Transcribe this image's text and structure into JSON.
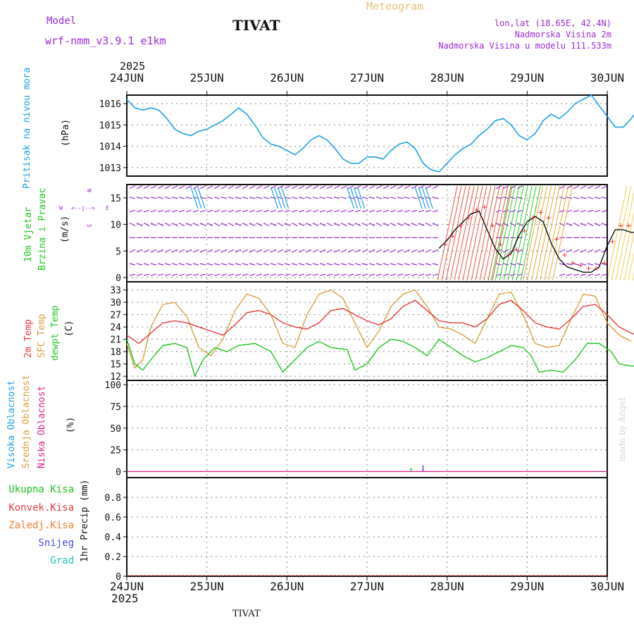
{
  "header": {
    "model_label": "Model",
    "model_name": "wrf-nmm_v3.9.1 e1km",
    "station": "TIVAT",
    "meteogram_label": "Meteogram",
    "coords": "lon,lat (18.65E, 42.4N)",
    "altitude": "Nadmorska Visina 2m",
    "model_altitude": "Nadmorska Visina u modelu 111.533m",
    "year_top": "2025",
    "year_bottom": "2025",
    "footer_station": "TIVAT",
    "credit": "made by Angel"
  },
  "colors": {
    "pressure": "#1ea0e6",
    "temp2m": "#e83a3a",
    "sfc": "#d8a040",
    "dew": "#22c422",
    "wind_speed": "#000000",
    "purple": "#9a2bd6",
    "grid": "#888888"
  },
  "chart_data": [
    {
      "type": "line",
      "name": "pressure",
      "labels": [
        "Pritisak na nivou mora",
        "(hPa)"
      ],
      "x": [
        "24JUN",
        "25JUN",
        "26JUN",
        "27JUN",
        "28JUN",
        "29JUN",
        "30JUN"
      ],
      "ylim": [
        1012.6,
        1016.4
      ],
      "yticks": [
        1013,
        1014,
        1015,
        1016
      ],
      "series": [
        {
          "values": [
            [
              0,
              1016.2
            ],
            [
              0.1,
              1015.8
            ],
            [
              0.2,
              1015.7
            ],
            [
              0.3,
              1015.8
            ],
            [
              0.4,
              1015.7
            ],
            [
              0.5,
              1015.3
            ],
            [
              0.6,
              1014.8
            ],
            [
              0.7,
              1014.6
            ],
            [
              0.8,
              1014.5
            ],
            [
              0.9,
              1014.7
            ],
            [
              1.0,
              1014.8
            ],
            [
              1.1,
              1015.0
            ],
            [
              1.2,
              1015.2
            ],
            [
              1.3,
              1015.5
            ],
            [
              1.4,
              1015.8
            ],
            [
              1.5,
              1015.5
            ],
            [
              1.6,
              1015.0
            ],
            [
              1.7,
              1014.4
            ],
            [
              1.8,
              1014.1
            ],
            [
              1.9,
              1014.0
            ],
            [
              2.0,
              1013.8
            ],
            [
              2.1,
              1013.6
            ],
            [
              2.2,
              1013.9
            ],
            [
              2.3,
              1014.3
            ],
            [
              2.4,
              1014.5
            ],
            [
              2.5,
              1014.3
            ],
            [
              2.6,
              1013.9
            ],
            [
              2.7,
              1013.4
            ],
            [
              2.8,
              1013.2
            ],
            [
              2.9,
              1013.2
            ],
            [
              3.0,
              1013.5
            ],
            [
              3.1,
              1013.5
            ],
            [
              3.2,
              1013.4
            ],
            [
              3.3,
              1013.8
            ],
            [
              3.4,
              1014.1
            ],
            [
              3.5,
              1014.2
            ],
            [
              3.6,
              1013.9
            ],
            [
              3.7,
              1013.2
            ],
            [
              3.8,
              1012.9
            ],
            [
              3.9,
              1012.8
            ],
            [
              4.0,
              1013.2
            ],
            [
              4.1,
              1013.6
            ],
            [
              4.2,
              1013.9
            ],
            [
              4.3,
              1014.1
            ],
            [
              4.4,
              1014.5
            ],
            [
              4.5,
              1014.8
            ],
            [
              4.6,
              1015.2
            ],
            [
              4.7,
              1015.3
            ],
            [
              4.8,
              1015.0
            ],
            [
              4.9,
              1014.5
            ],
            [
              5.0,
              1014.3
            ],
            [
              5.1,
              1014.6
            ],
            [
              5.2,
              1015.2
            ],
            [
              5.3,
              1015.5
            ],
            [
              5.4,
              1015.3
            ],
            [
              5.5,
              1015.6
            ],
            [
              5.6,
              1016.0
            ],
            [
              5.7,
              1016.2
            ],
            [
              5.8,
              1016.4
            ],
            [
              5.9,
              1015.9
            ],
            [
              6.0,
              1015.4
            ],
            [
              6.1,
              1014.9
            ],
            [
              6.2,
              1014.9
            ],
            [
              6.3,
              1015.3
            ],
            [
              6.4,
              1015.8
            ],
            [
              6.5,
              1016.0
            ],
            [
              6.6,
              1015.8
            ]
          ]
        }
      ]
    },
    {
      "type": "line",
      "name": "wind",
      "labels": [
        "10m Vjetar",
        "Brzina i Pravac",
        "(m/s)"
      ],
      "compass": {
        "n": "N",
        "s": "S",
        "w": "W",
        "e": "E"
      },
      "ylim": [
        -0.8,
        17.5
      ],
      "yticks": [
        0,
        5,
        10,
        15
      ],
      "bands": [
        0.5,
        2.5,
        5,
        7.5,
        10,
        12.5,
        15,
        17
      ],
      "speed_labels": "+",
      "series": [
        {
          "name": "wind speed",
          "values": [
            [
              3.9,
              5.5
            ],
            [
              4.0,
              7.0
            ],
            [
              4.1,
              9.0
            ],
            [
              4.2,
              10.5
            ],
            [
              4.3,
              12.0
            ],
            [
              4.4,
              12.5
            ],
            [
              4.5,
              9.0
            ],
            [
              4.6,
              5.5
            ],
            [
              4.7,
              3.5
            ],
            [
              4.8,
              4.5
            ],
            [
              4.9,
              8.0
            ],
            [
              5.0,
              10.5
            ],
            [
              5.1,
              11.5
            ],
            [
              5.2,
              10.5
            ],
            [
              5.3,
              6.5
            ],
            [
              5.4,
              3.5
            ],
            [
              5.5,
              2.0
            ],
            [
              5.6,
              1.5
            ],
            [
              5.7,
              1.0
            ],
            [
              5.8,
              1.0
            ],
            [
              5.9,
              2.0
            ],
            [
              6.0,
              6.0
            ],
            [
              6.1,
              9.0
            ],
            [
              6.2,
              9.0
            ],
            [
              6.3,
              8.5
            ],
            [
              6.4,
              8.5
            ],
            [
              6.5,
              8.0
            ],
            [
              6.6,
              8.5
            ]
          ]
        }
      ]
    },
    {
      "type": "line",
      "name": "temperature",
      "labels": [
        "2m Temp",
        "SFC Temp",
        "dewpt Temp",
        "(C)"
      ],
      "ylim": [
        11,
        35
      ],
      "yticks": [
        12,
        15,
        18,
        21,
        24,
        27,
        30,
        33
      ],
      "series": [
        {
          "name": "2m Temp",
          "values": [
            [
              0,
              22
            ],
            [
              0.15,
              20
            ],
            [
              0.3,
              22.5
            ],
            [
              0.45,
              25
            ],
            [
              0.6,
              25.5
            ],
            [
              0.75,
              25
            ],
            [
              0.9,
              24
            ],
            [
              1.05,
              23
            ],
            [
              1.2,
              22
            ],
            [
              1.35,
              24.5
            ],
            [
              1.5,
              27.5
            ],
            [
              1.65,
              28
            ],
            [
              1.8,
              27
            ],
            [
              1.95,
              25
            ],
            [
              2.1,
              24
            ],
            [
              2.25,
              23.5
            ],
            [
              2.4,
              25
            ],
            [
              2.55,
              28
            ],
            [
              2.7,
              28.5
            ],
            [
              2.85,
              27
            ],
            [
              3.0,
              25.5
            ],
            [
              3.15,
              24.5
            ],
            [
              3.3,
              26
            ],
            [
              3.45,
              29
            ],
            [
              3.6,
              30.5
            ],
            [
              3.75,
              28
            ],
            [
              3.9,
              25.5
            ],
            [
              4.05,
              25
            ],
            [
              4.2,
              25
            ],
            [
              4.35,
              24
            ],
            [
              4.5,
              26
            ],
            [
              4.65,
              29.5
            ],
            [
              4.8,
              30.5
            ],
            [
              4.95,
              28
            ],
            [
              5.1,
              25
            ],
            [
              5.25,
              24
            ],
            [
              5.4,
              23.5
            ],
            [
              5.55,
              26
            ],
            [
              5.7,
              29
            ],
            [
              5.85,
              29.5
            ],
            [
              6.0,
              27
            ],
            [
              6.15,
              24
            ],
            [
              6.3,
              22.5
            ],
            [
              6.45,
              21.5
            ]
          ]
        },
        {
          "name": "SFC Temp",
          "values": [
            [
              0,
              20
            ],
            [
              0.1,
              14
            ],
            [
              0.2,
              16
            ],
            [
              0.3,
              24
            ],
            [
              0.45,
              29.5
            ],
            [
              0.6,
              30
            ],
            [
              0.75,
              26.5
            ],
            [
              0.9,
              19
            ],
            [
              1.05,
              17
            ],
            [
              1.2,
              21
            ],
            [
              1.35,
              28
            ],
            [
              1.5,
              32
            ],
            [
              1.65,
              31
            ],
            [
              1.8,
              27
            ],
            [
              1.95,
              20
            ],
            [
              2.1,
              19
            ],
            [
              2.25,
              27
            ],
            [
              2.4,
              32
            ],
            [
              2.55,
              33
            ],
            [
              2.7,
              31
            ],
            [
              2.85,
              25
            ],
            [
              3.0,
              19
            ],
            [
              3.15,
              23
            ],
            [
              3.3,
              29
            ],
            [
              3.45,
              32
            ],
            [
              3.6,
              33
            ],
            [
              3.75,
              29
            ],
            [
              3.9,
              24
            ],
            [
              4.05,
              23.5
            ],
            [
              4.2,
              22
            ],
            [
              4.35,
              20
            ],
            [
              4.5,
              26
            ],
            [
              4.65,
              32
            ],
            [
              4.8,
              32.5
            ],
            [
              4.95,
              27
            ],
            [
              5.1,
              20
            ],
            [
              5.25,
              19
            ],
            [
              5.4,
              19.5
            ],
            [
              5.55,
              26
            ],
            [
              5.7,
              32
            ],
            [
              5.85,
              31.5
            ],
            [
              6.0,
              25
            ],
            [
              6.15,
              22
            ],
            [
              6.3,
              20.5
            ]
          ]
        },
        {
          "name": "dewpt Temp",
          "values": [
            [
              0,
              21
            ],
            [
              0.1,
              15
            ],
            [
              0.2,
              13.5
            ],
            [
              0.3,
              16
            ],
            [
              0.45,
              19.5
            ],
            [
              0.6,
              20
            ],
            [
              0.75,
              19
            ],
            [
              0.85,
              12
            ],
            [
              0.95,
              16
            ],
            [
              1.1,
              19
            ],
            [
              1.25,
              18
            ],
            [
              1.4,
              19.5
            ],
            [
              1.6,
              20
            ],
            [
              1.8,
              18
            ],
            [
              1.95,
              13
            ],
            [
              2.1,
              16
            ],
            [
              2.25,
              19
            ],
            [
              2.4,
              20.5
            ],
            [
              2.55,
              19
            ],
            [
              2.75,
              18.5
            ],
            [
              2.85,
              13.5
            ],
            [
              3.0,
              15
            ],
            [
              3.15,
              19
            ],
            [
              3.3,
              21
            ],
            [
              3.45,
              20.5
            ],
            [
              3.6,
              19
            ],
            [
              3.75,
              17
            ],
            [
              3.9,
              21
            ],
            [
              4.05,
              19
            ],
            [
              4.2,
              17
            ],
            [
              4.35,
              15.5
            ],
            [
              4.5,
              16.5
            ],
            [
              4.65,
              18
            ],
            [
              4.8,
              19.5
            ],
            [
              4.95,
              19
            ],
            [
              5.05,
              17
            ],
            [
              5.15,
              13
            ],
            [
              5.3,
              13.5
            ],
            [
              5.45,
              13
            ],
            [
              5.6,
              16
            ],
            [
              5.75,
              20
            ],
            [
              5.9,
              20
            ],
            [
              6.05,
              18
            ],
            [
              6.15,
              15
            ],
            [
              6.3,
              14.5
            ],
            [
              6.45,
              14.5
            ]
          ]
        }
      ]
    },
    {
      "type": "bar",
      "name": "clouds",
      "labels": [
        "Visoka Oblacnost",
        "Srednja Oblacnost",
        "Niska Oblacnost",
        "(%)"
      ],
      "ylim": [
        -7,
        105
      ],
      "yticks": [
        0,
        25,
        50,
        75,
        100
      ],
      "series": [
        {
          "name": "Srednja Oblacnost",
          "values": [
            [
              3.55,
              1
            ]
          ]
        },
        {
          "name": "Visoka Oblacnost",
          "values": [
            [
              3.7,
              4
            ]
          ]
        }
      ]
    },
    {
      "type": "bar",
      "name": "precip",
      "labels": [
        "1hr Precip (mm)"
      ],
      "legend": [
        "Ukupna Kisa",
        "Konvek.Kisa",
        "Zaledj.Kisa",
        "Snijeg",
        "Grad"
      ],
      "ylim": [
        0,
        1.0
      ],
      "yticks": [
        0,
        0.2,
        0.4,
        0.6,
        0.8
      ],
      "series": []
    }
  ]
}
